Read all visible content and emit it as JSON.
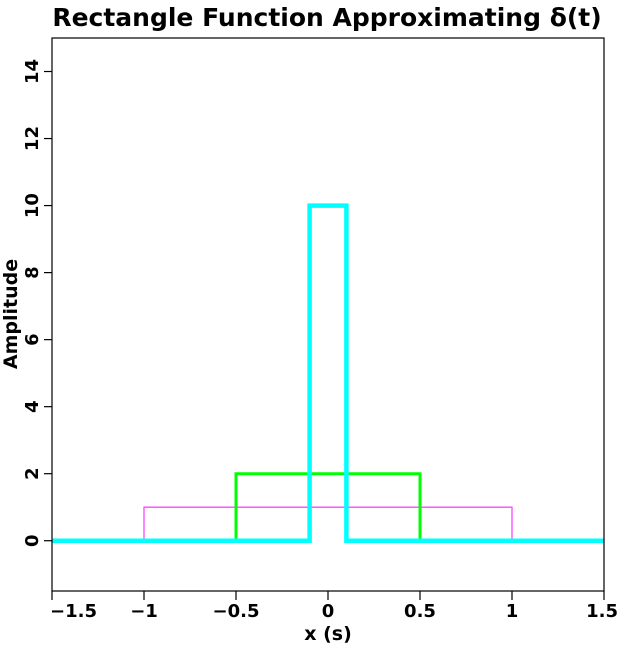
{
  "chart_data": {
    "type": "line",
    "title": "Rectangle Function Approximating δ(t)",
    "xlabel": "x (s)",
    "ylabel": "Amplitude",
    "xlim": [
      -1.5,
      1.5
    ],
    "ylim": [
      -1.5,
      15
    ],
    "x_ticks": [
      -1.5,
      -1,
      -0.5,
      0,
      0.5,
      1,
      1.5
    ],
    "x_tick_labels": [
      "−1.5",
      "−1",
      "−0.5",
      "0",
      "0.5",
      "1",
      "1.5"
    ],
    "y_ticks": [
      0,
      2,
      4,
      6,
      8,
      10,
      12,
      14
    ],
    "y_tick_labels": [
      "0",
      "2",
      "4",
      "6",
      "8",
      "10",
      "12",
      "14"
    ],
    "grid": false,
    "series": [
      {
        "color": "#ff44ff",
        "width": "thin",
        "points": [
          [
            -1.5,
            0
          ],
          [
            -1,
            0
          ],
          [
            -1,
            1
          ],
          [
            1,
            1
          ],
          [
            1,
            0
          ],
          [
            1.5,
            0
          ]
        ]
      },
      {
        "color": "#00ff00",
        "width": "medium",
        "points": [
          [
            -1.5,
            0
          ],
          [
            -0.5,
            0
          ],
          [
            -0.5,
            2
          ],
          [
            0.5,
            2
          ],
          [
            0.5,
            0
          ],
          [
            1.5,
            0
          ]
        ]
      },
      {
        "color": "#00ffff",
        "width": "thick",
        "points": [
          [
            -1.5,
            0
          ],
          [
            -0.1,
            0
          ],
          [
            -0.1,
            10
          ],
          [
            0.1,
            10
          ],
          [
            0.1,
            0
          ],
          [
            1.5,
            0
          ]
        ]
      }
    ]
  }
}
